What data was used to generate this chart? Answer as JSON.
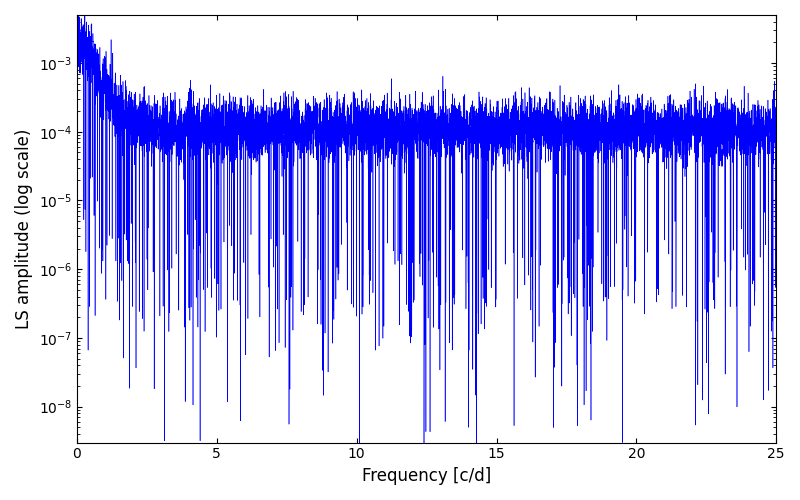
{
  "xlabel": "Frequency [c/d]",
  "ylabel": "LS amplitude (log scale)",
  "line_color": "#0000FF",
  "xlim": [
    0,
    25
  ],
  "ylim": [
    3e-09,
    0.005
  ],
  "figsize": [
    8.0,
    5.0
  ],
  "dpi": 100,
  "background_color": "#ffffff",
  "seed": 12345,
  "n_points": 8000,
  "freq_max": 25.0
}
